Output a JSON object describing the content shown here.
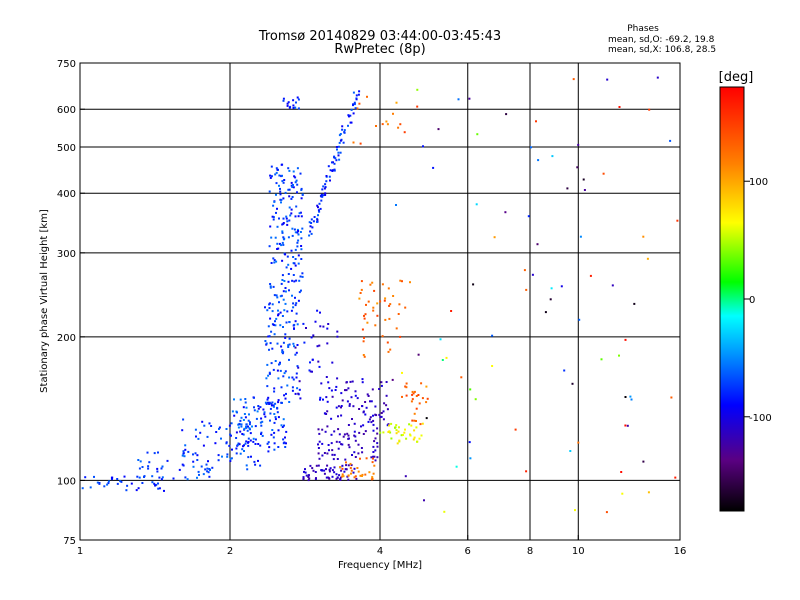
{
  "chart_data": {
    "type": "scatter",
    "title": "Tromsø 20140829 03:44:00-03:45:43",
    "subtitle": "RwPretec (8p)",
    "stats": {
      "heading": "Phases",
      "line1": "mean, sd,O: -69.2, 19.8",
      "line2": "mean, sd,X: 106.8, 28.5"
    },
    "xlabel": "Frequency [MHz]",
    "ylabel": "Stationary phase Virtual Height [km]",
    "x_scale": "log",
    "y_scale": "log",
    "xlim": [
      1,
      16
    ],
    "ylim": [
      75,
      750
    ],
    "x_ticks": [
      1,
      2,
      4,
      6,
      8,
      10,
      16
    ],
    "x_tick_labels": [
      "1",
      "2",
      "4",
      "6",
      "8",
      "10",
      "16"
    ],
    "y_ticks": [
      75,
      100,
      200,
      300,
      400,
      500,
      600,
      750
    ],
    "y_tick_labels": [
      "75",
      "100",
      "200",
      "300",
      "400",
      "500",
      "600",
      "750"
    ],
    "grid": true,
    "colorbar": {
      "label": "[deg]",
      "range": [
        -180,
        180
      ],
      "ticks": [
        100,
        0,
        -100
      ],
      "tick_labels": [
        "100",
        "0",
        "-100"
      ]
    },
    "clusters": [
      {
        "x": [
          1.0,
          1.5
        ],
        "y": [
          95,
          102
        ],
        "phase": [
          -95,
          -60
        ],
        "n": 35
      },
      {
        "x": [
          1.3,
          1.9
        ],
        "y": [
          100,
          115
        ],
        "phase": [
          -90,
          -55
        ],
        "n": 45
      },
      {
        "x": [
          1.6,
          2.3
        ],
        "y": [
          105,
          135
        ],
        "phase": [
          -95,
          -55
        ],
        "n": 70
      },
      {
        "x": [
          2.0,
          2.6
        ],
        "y": [
          115,
          150
        ],
        "phase": [
          -100,
          -50
        ],
        "n": 110
      },
      {
        "x": [
          2.35,
          2.75
        ],
        "y": [
          140,
          240
        ],
        "phase": [
          -95,
          -55
        ],
        "n": 120
      },
      {
        "x": [
          2.4,
          2.8
        ],
        "y": [
          240,
          460
        ],
        "phase": [
          -95,
          -55
        ],
        "n": 170
      },
      {
        "x": [
          2.55,
          2.75
        ],
        "y": [
          600,
          640
        ],
        "phase": [
          -95,
          -60
        ],
        "n": 15
      },
      {
        "x": [
          2.7,
          3.3
        ],
        "y": [
          145,
          230
        ],
        "phase": [
          -120,
          -80
        ],
        "n": 40
      },
      {
        "x": [
          2.8,
          3.6
        ],
        "y": [
          100,
          108
        ],
        "phase": [
          -125,
          -100
        ],
        "n": 60
      },
      {
        "x": [
          3.0,
          4.0
        ],
        "y": [
          110,
          130
        ],
        "phase": [
          -125,
          -100
        ],
        "n": 70
      },
      {
        "x": [
          3.1,
          4.2
        ],
        "y": [
          130,
          165
        ],
        "phase": [
          -125,
          -95
        ],
        "n": 80
      },
      {
        "x": [
          3.3,
          3.9
        ],
        "y": [
          100,
          112
        ],
        "phase": [
          100,
          140
        ],
        "n": 30
      },
      {
        "x": [
          3.6,
          4.6
        ],
        "y": [
          180,
          270
        ],
        "phase": [
          100,
          150
        ],
        "n": 45
      },
      {
        "x": [
          4.0,
          4.9
        ],
        "y": [
          120,
          132
        ],
        "phase": [
          40,
          80
        ],
        "n": 35
      },
      {
        "x": [
          4.4,
          5.0
        ],
        "y": [
          130,
          160
        ],
        "phase": [
          100,
          150
        ],
        "n": 25
      },
      {
        "x": [
          3.5,
          4.5
        ],
        "y": [
          500,
          640
        ],
        "phase": [
          100,
          150
        ],
        "n": 14
      },
      {
        "x": [
          4.2,
          16
        ],
        "y": [
          80,
          700
        ],
        "phase": [
          -180,
          180
        ],
        "n": 90
      }
    ],
    "x_trace": {
      "x": [
        2.9,
        3.6
      ],
      "y": [
        330,
        650
      ],
      "phase": [
        -100,
        -60
      ],
      "n": 90
    }
  }
}
